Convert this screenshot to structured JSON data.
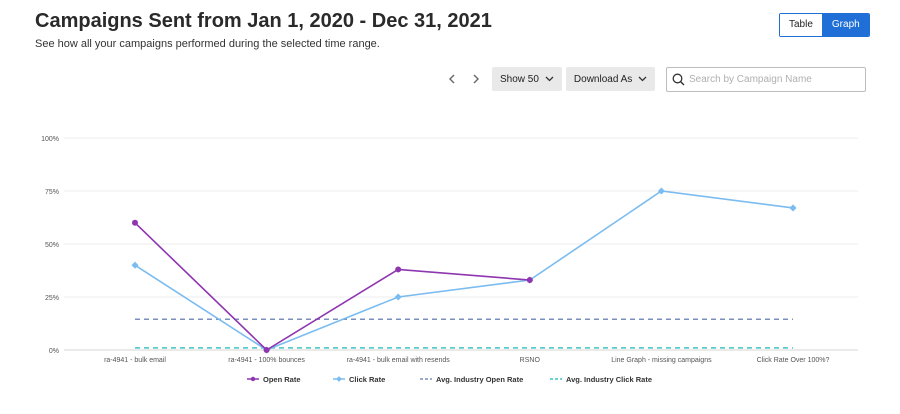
{
  "header": {
    "title": "Campaigns Sent from Jan 1, 2020 - Dec 31, 2021",
    "subtitle": "See how all your campaigns performed during the selected time range."
  },
  "view_toggle": {
    "table_label": "Table",
    "graph_label": "Graph",
    "active": "Graph",
    "active_color": "#1f6fd6"
  },
  "toolbar": {
    "prev_icon": "chevron-left-icon",
    "next_icon": "chevron-right-icon",
    "show_label": "Show 50",
    "download_label": "Download As",
    "search_placeholder": "Search by Campaign Name",
    "search_value": ""
  },
  "chart_data": {
    "type": "line",
    "categories": [
      "ra-4941 - bulk email",
      "ra-4941 - 100% bounces",
      "ra-4941 - bulk email with resends",
      "RSNO",
      "Line Graph - missing campaigns",
      "Click Rate Over 100%?"
    ],
    "y_ticks": [
      "0%",
      "25%",
      "50%",
      "75%",
      "100%"
    ],
    "ylim": [
      0,
      100
    ],
    "grid": true,
    "legend_position": "bottom",
    "series": [
      {
        "name": "Open Rate",
        "values": [
          60,
          0,
          38,
          33,
          null,
          null
        ],
        "color": "#8e35b0",
        "style": "solid",
        "marker": "circle"
      },
      {
        "name": "Click Rate",
        "values": [
          40,
          0,
          25,
          33,
          75,
          67
        ],
        "color": "#7bbcf0",
        "style": "solid",
        "marker": "diamond"
      },
      {
        "name": "Avg. Industry Open Rate",
        "values": [
          14.5,
          14.5,
          14.5,
          14.5,
          14.5,
          14.5
        ],
        "color": "#7b8fbd",
        "style": "dashed"
      },
      {
        "name": "Avg. Industry Click Rate",
        "values": [
          1,
          1,
          1,
          1,
          1,
          1
        ],
        "color": "#3fc4c4",
        "style": "dashed"
      }
    ]
  }
}
